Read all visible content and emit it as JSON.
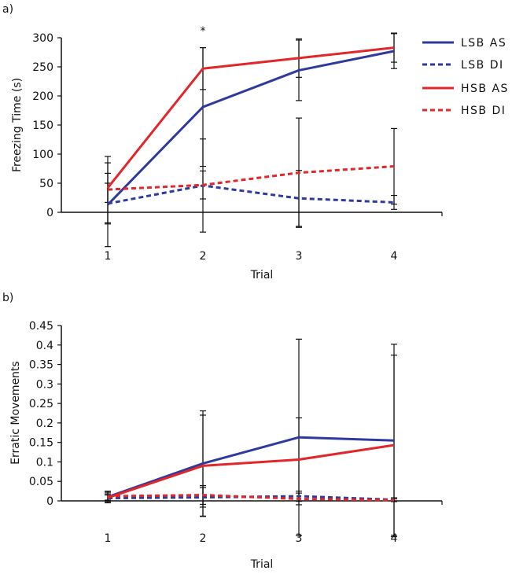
{
  "legend": [
    {
      "name": "LSB AS",
      "color": "#2e3a9f",
      "dash": false
    },
    {
      "name": "LSB DI",
      "color": "#2e3a9f",
      "dash": true
    },
    {
      "name": "HSB AS",
      "color": "#e2262a",
      "dash": false
    },
    {
      "name": "HSB DI",
      "color": "#e2262a",
      "dash": true
    }
  ],
  "chart_data": [
    {
      "panel_label": "a)",
      "type": "line",
      "x": [
        1,
        2,
        3,
        4
      ],
      "xticks": [
        "1",
        "2",
        "3",
        "4"
      ],
      "xlabel": "Trial",
      "ylabel": "Freezing Time (s)",
      "ylim": [
        0,
        300
      ],
      "yticks": [
        "0",
        "50",
        "100",
        "150",
        "200",
        "250",
        "300"
      ],
      "annotation": {
        "x": 2,
        "text": "*"
      },
      "series": [
        {
          "name": "LSB AS",
          "values": [
            13,
            181,
            244,
            277
          ],
          "err": [
            72,
            102,
            52,
            30
          ]
        },
        {
          "name": "LSB DI",
          "values": [
            15,
            46,
            24,
            17
          ],
          "err": [
            35,
            80,
            48,
            12
          ]
        },
        {
          "name": "HSB AS",
          "values": [
            42,
            247,
            265,
            283
          ],
          "err": [
            25,
            36,
            33,
            25
          ]
        },
        {
          "name": "HSB DI",
          "values": [
            39,
            47,
            68,
            79
          ],
          "err": [
            57,
            24,
            94,
            65
          ]
        }
      ]
    },
    {
      "panel_label": "b)",
      "type": "line",
      "x": [
        1,
        2,
        3,
        4
      ],
      "xticks": [
        "1",
        "2",
        "3",
        "4"
      ],
      "xlabel": "Trial",
      "ylabel": "Erratic Movements",
      "ylim": [
        0,
        0.45
      ],
      "yticks": [
        "0",
        "0.05",
        "0.1",
        "0.15",
        "0.2",
        "0.25",
        "0.3",
        "0.35",
        "0.4",
        "0.45"
      ],
      "series": [
        {
          "name": "LSB AS",
          "values": [
            0.01,
            0.096,
            0.163,
            0.155
          ],
          "err": [
            0.015,
            0.135,
            0.252,
            0.247
          ]
        },
        {
          "name": "LSB DI",
          "values": [
            0.007,
            0.009,
            0.012,
            0.003
          ],
          "err": [
            0.008,
            0.025,
            0.013,
            0.005
          ]
        },
        {
          "name": "HSB AS",
          "values": [
            0.008,
            0.09,
            0.106,
            0.143
          ],
          "err": [
            0.01,
            0.13,
            0.107,
            0.231
          ]
        },
        {
          "name": "HSB DI",
          "values": [
            0.012,
            0.015,
            0.005,
            0.002
          ],
          "err": [
            0.01,
            0.024,
            0.015,
            0.003
          ]
        }
      ]
    }
  ]
}
